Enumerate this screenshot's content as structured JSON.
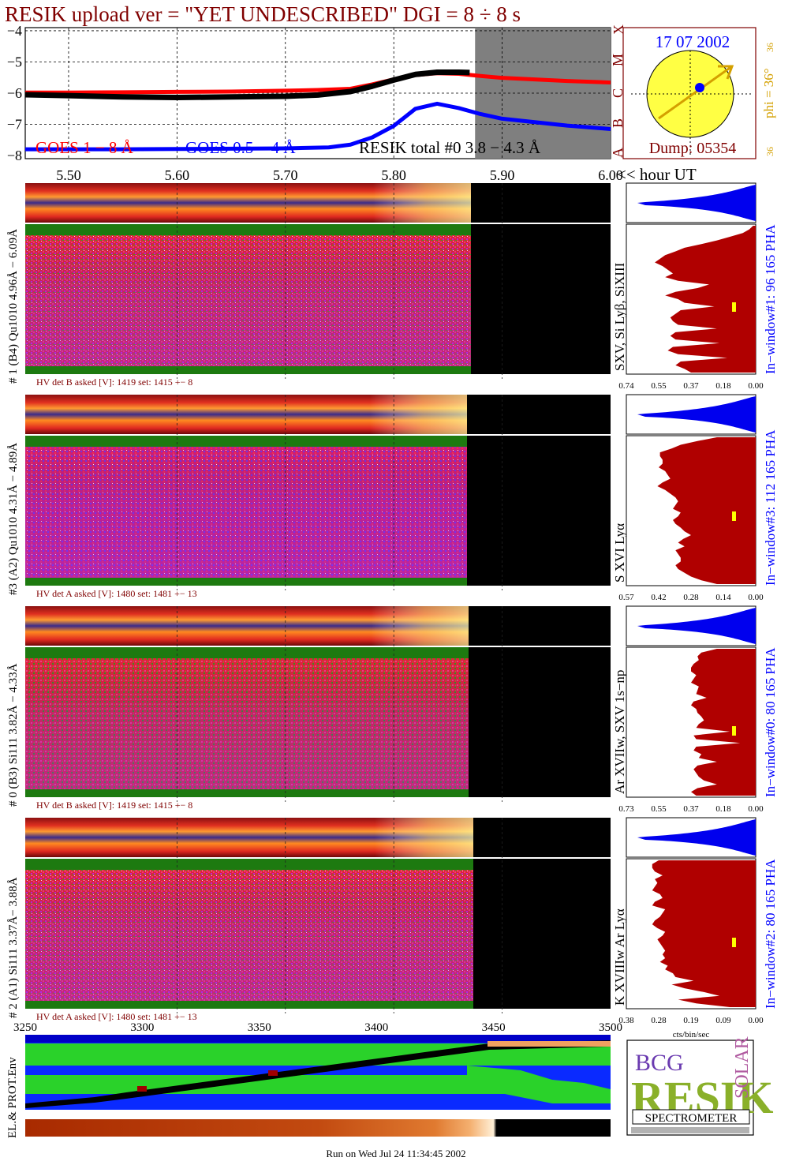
{
  "header": {
    "title": "RESIK upload ver = \"YET UNDESCRIBED\"  DGI =   8 ÷   8 s",
    "footer": "Run on Wed Jul 24 11:34:45 2002"
  },
  "colors": {
    "goes_long": "#ff0000",
    "goes_short": "#0000ff",
    "resik_total": "#000000",
    "title": "#800000",
    "dark_red": "#b00000",
    "pha_blue": "#0000ee",
    "sun_yellow": "#ffff44",
    "phi_orange": "#d4a000"
  },
  "lightcurve": {
    "ylabels": [
      "−4",
      "−5",
      "−6",
      "−7",
      "−8"
    ],
    "class_labels": [
      "X",
      "M",
      "C",
      "B",
      "A"
    ],
    "xlabels": [
      "5.50",
      "5.60",
      "5.70",
      "5.80",
      "5.90",
      "6.00"
    ],
    "x_unit": "<< hour UT",
    "legend_goes_long": "GOES 1 − 8 Å",
    "legend_goes_short": "GOES 0.5 − 4 Å",
    "legend_resik": "RESIK total #0  3.8 − 4.3 Å"
  },
  "sun_panel": {
    "date": "17 07 2002",
    "dump": "Dump: 05354",
    "phi": "phi = 36°",
    "phi_top": "36",
    "phi_bottom": "36"
  },
  "panels": [
    {
      "ylabel": "# 1 (B4) Qu1010 4.96Å − 6.09Å",
      "line_label": "SXV, Si Lyβ, SiXIII",
      "window_label": "In−window#1:  96 165 PHA",
      "hv_text": "HV det B asked [V]:  1419 set:  1415 +−   8",
      "pha_ticks": [
        "0.74",
        "0.55",
        "0.37",
        "0.18",
        "0.00"
      ]
    },
    {
      "ylabel": "#3 (A2) Qu1010  4.31Å − 4.89Å",
      "line_label": "S XVI Lyα",
      "window_label": "In−window#3:  112 165 PHA",
      "hv_text": "HV det A asked [V]:  1480 set:  1481 +−   13",
      "pha_ticks": [
        "0.57",
        "0.42",
        "0.28",
        "0.14",
        "0.00"
      ]
    },
    {
      "ylabel": "# 0 (B3) Si111  3.82Å − 4.33Å",
      "line_label": "Ar XVIIw,  SXV 1s−np",
      "window_label": "In−window#0:  80 165 PHA",
      "hv_text": "HV det B asked [V]:  1419 set:  1415 +−   8",
      "pha_ticks": [
        "0.73",
        "0.55",
        "0.37",
        "0.18",
        "0.00"
      ]
    },
    {
      "ylabel": "# 2 (A1) Si111  3.37Å− 3.88Å",
      "line_label": "K XVIIIw  Ar Lyα",
      "window_label": "In−window#2:  80 165 PHA",
      "hv_text": "HV det A asked [V]:  1480 set:  1481 +−   13",
      "pha_ticks": [
        "0.38",
        "0.28",
        "0.19",
        "0.09",
        "0.00"
      ]
    }
  ],
  "pha_unit": "cts/bin/sec",
  "env_panel": {
    "xlabels": [
      "3250",
      "3300",
      "3350",
      "3400",
      "3450",
      "3500"
    ],
    "ylabel": "EL.& PROT.Env"
  },
  "logo": {
    "letters_top": "BCG",
    "letters_main": "RESIK",
    "letters_side": "SOLAR",
    "bottom": "SPECTROMETER"
  },
  "chart_data": {
    "type": "line",
    "title": "RESIK upload ver = \"YET UNDESCRIBED\"  DGI =   8 ÷   8 s",
    "xlabel": "<< hour UT",
    "ylabel": "",
    "xlim": [
      5.46,
      6.0
    ],
    "ylim": [
      -8.1,
      -3.9
    ],
    "grid": true,
    "series": [
      {
        "name": "GOES 1 − 8 Å",
        "x": [
          5.46,
          5.5,
          5.55,
          5.6,
          5.65,
          5.7,
          5.73,
          5.76,
          5.78,
          5.8,
          5.82,
          5.84,
          5.86,
          5.88,
          5.9,
          5.93,
          5.96,
          6.0
        ],
        "values": [
          -5.98,
          -5.98,
          -5.97,
          -5.96,
          -5.95,
          -5.92,
          -5.9,
          -5.86,
          -5.72,
          -5.56,
          -5.42,
          -5.36,
          -5.38,
          -5.45,
          -5.51,
          -5.56,
          -5.61,
          -5.66
        ]
      },
      {
        "name": "GOES 0.5 − 4 Å",
        "x": [
          5.46,
          5.5,
          5.55,
          5.6,
          5.65,
          5.7,
          5.74,
          5.76,
          5.78,
          5.8,
          5.82,
          5.84,
          5.86,
          5.88,
          5.9,
          5.93,
          5.96,
          6.0
        ],
        "values": [
          -7.8,
          -7.8,
          -7.8,
          -7.79,
          -7.78,
          -7.77,
          -7.74,
          -7.65,
          -7.42,
          -7.05,
          -6.5,
          -6.34,
          -6.48,
          -6.67,
          -6.82,
          -6.93,
          -7.04,
          -7.15
        ]
      },
      {
        "name": "RESIK total #0  3.8 − 4.3 Å",
        "x": [
          5.46,
          5.5,
          5.55,
          5.6,
          5.65,
          5.7,
          5.73,
          5.76,
          5.78,
          5.8,
          5.82,
          5.84,
          5.86,
          5.87
        ],
        "values": [
          -6.05,
          -6.08,
          -6.12,
          -6.14,
          -6.12,
          -6.1,
          -6.06,
          -5.95,
          -5.78,
          -5.58,
          -5.4,
          -5.33,
          -5.33,
          -5.34
        ]
      }
    ],
    "shaded_region": [
      5.875,
      6.0
    ]
  }
}
